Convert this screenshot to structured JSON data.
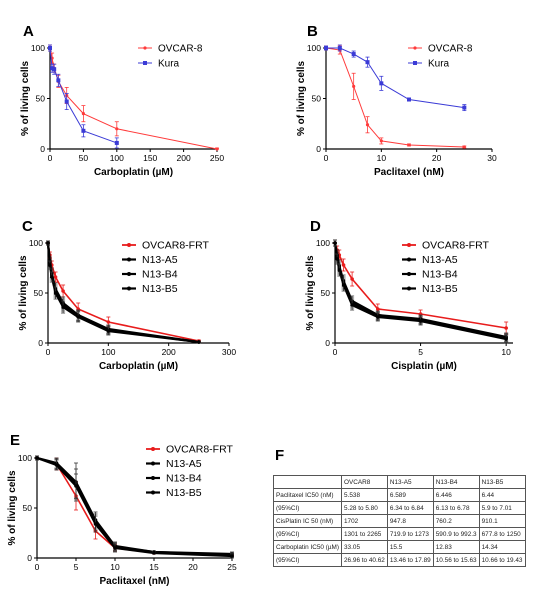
{
  "chart_data": [
    {
      "letter": "A",
      "type": "line",
      "xlabel": "Carboplatin (µM)",
      "ylabel": "% of living cells",
      "xlim": [
        0,
        250
      ],
      "ylim": [
        0,
        100
      ],
      "xticks": [
        0,
        50,
        100,
        150,
        200,
        250
      ],
      "yticks": [
        0,
        50,
        100
      ],
      "xtick_labels": [
        "0",
        "50",
        "100",
        "150",
        "200",
        "250"
      ],
      "ytick_labels": [
        "0",
        "50",
        "100"
      ],
      "legend_style": "small",
      "series": [
        {
          "name": "OVCAR-8",
          "color": "#ff3b3b",
          "width": 1,
          "marker": "dot",
          "x": [
            0,
            3.125,
            6.25,
            12.5,
            25,
            50,
            100,
            250
          ],
          "y": [
            100,
            90,
            80,
            67,
            53,
            35,
            20,
            0
          ],
          "err": [
            3,
            5,
            4,
            6,
            8,
            8,
            7,
            1
          ]
        },
        {
          "name": "Kura",
          "color": "#3b3bd6",
          "width": 1,
          "marker": "square",
          "x": [
            0,
            3.125,
            6.25,
            12.5,
            25,
            50,
            100
          ],
          "y": [
            100,
            80,
            79,
            68,
            47,
            18,
            6
          ],
          "err": [
            3,
            4,
            5,
            6,
            8,
            6,
            5
          ]
        }
      ]
    },
    {
      "letter": "B",
      "type": "line",
      "xlabel": "Paclitaxel (nM)",
      "ylabel": "% of living cells",
      "xlim": [
        0,
        30
      ],
      "ylim": [
        0,
        100
      ],
      "xticks": [
        0,
        10,
        20,
        30
      ],
      "yticks": [
        0,
        50,
        100
      ],
      "xtick_labels": [
        "0",
        "10",
        "20",
        "30"
      ],
      "ytick_labels": [
        "0",
        "50",
        "100"
      ],
      "legend_style": "small",
      "series": [
        {
          "name": "OVCAR-8",
          "color": "#ff3b3b",
          "width": 1,
          "marker": "dot",
          "x": [
            0,
            2.5,
            5,
            7.5,
            10,
            15,
            25
          ],
          "y": [
            100,
            98,
            62,
            24,
            8,
            4,
            2
          ],
          "err": [
            2,
            4,
            13,
            8,
            3,
            1,
            1
          ]
        },
        {
          "name": "Kura",
          "color": "#3b3bd6",
          "width": 1,
          "marker": "square",
          "x": [
            0,
            2.5,
            5,
            7.5,
            10,
            15,
            25
          ],
          "y": [
            100,
            100,
            94,
            86,
            65,
            49,
            41
          ],
          "err": [
            2,
            3,
            3,
            5,
            7,
            1,
            3
          ]
        }
      ]
    },
    {
      "letter": "C",
      "type": "line",
      "xlabel": "Carboplatin (µM)",
      "ylabel": "% of living cells",
      "xlim": [
        0,
        300
      ],
      "ylim": [
        0,
        100
      ],
      "xticks": [
        0,
        100,
        200,
        300
      ],
      "yticks": [
        0,
        50,
        100
      ],
      "xtick_labels": [
        "0",
        "100",
        "200",
        "300"
      ],
      "ytick_labels": [
        "0",
        "50",
        "100"
      ],
      "legend_style": "large",
      "series": [
        {
          "name": "OVCAR8-FRT",
          "color": "#e81c1c",
          "width": 1.6,
          "marker": "dot",
          "x": [
            0,
            3.125,
            6.25,
            12.5,
            25,
            50,
            100,
            250
          ],
          "y": [
            100,
            88,
            78,
            66,
            52,
            34,
            21,
            2
          ],
          "err": [
            2,
            3,
            4,
            5,
            6,
            6,
            5,
            1
          ]
        },
        {
          "name": "N13-A5",
          "color": "#000000",
          "width": 2.2,
          "marker": "dot",
          "x": [
            0,
            3.125,
            6.25,
            12.5,
            25,
            50,
            100,
            250
          ],
          "y": [
            100,
            82,
            70,
            54,
            40,
            28,
            14,
            1
          ],
          "err": [
            2,
            4,
            5,
            6,
            6,
            5,
            4,
            1
          ]
        },
        {
          "name": "N13-B4",
          "color": "#000000",
          "width": 2.2,
          "marker": "dot",
          "x": [
            0,
            3.125,
            6.25,
            12.5,
            25,
            50,
            100,
            250
          ],
          "y": [
            100,
            80,
            68,
            52,
            38,
            27,
            13,
            1
          ],
          "err": [
            2,
            4,
            5,
            6,
            6,
            5,
            4,
            1
          ]
        },
        {
          "name": "N13-B5",
          "color": "#000000",
          "width": 2.2,
          "marker": "dot",
          "x": [
            0,
            3.125,
            6.25,
            12.5,
            25,
            50,
            100,
            250
          ],
          "y": [
            100,
            78,
            66,
            50,
            36,
            26,
            12,
            1
          ],
          "err": [
            2,
            4,
            5,
            6,
            6,
            5,
            4,
            1
          ]
        }
      ]
    },
    {
      "letter": "D",
      "type": "line",
      "xlabel": "Cisplatin (µM)",
      "ylabel": "% of living cells",
      "xlim": [
        0,
        10.4
      ],
      "ylim": [
        0,
        100
      ],
      "xticks": [
        0,
        5,
        10
      ],
      "yticks": [
        0,
        50,
        100
      ],
      "xtick_labels": [
        "0",
        "5",
        "10"
      ],
      "ytick_labels": [
        "0",
        "50",
        "100"
      ],
      "legend_style": "large",
      "series": [
        {
          "name": "OVCAR8-FRT",
          "color": "#e81c1c",
          "width": 1.6,
          "marker": "dot",
          "x": [
            0,
            0.125,
            0.25,
            0.5,
            1,
            2.5,
            5,
            10
          ],
          "y": [
            100,
            93,
            88,
            78,
            64,
            34,
            29,
            15
          ],
          "err": [
            3,
            4,
            5,
            6,
            7,
            5,
            4,
            6
          ]
        },
        {
          "name": "N13-A5",
          "color": "#000000",
          "width": 2.2,
          "marker": "dot",
          "x": [
            0,
            0.125,
            0.25,
            0.5,
            1,
            2.5,
            5,
            10
          ],
          "y": [
            100,
            88,
            77,
            62,
            42,
            28,
            24,
            6
          ],
          "err": [
            3,
            5,
            6,
            6,
            5,
            4,
            4,
            4
          ]
        },
        {
          "name": "N13-B4",
          "color": "#000000",
          "width": 2.2,
          "marker": "dot",
          "x": [
            0,
            0.125,
            0.25,
            0.5,
            1,
            2.5,
            5,
            10
          ],
          "y": [
            100,
            86,
            75,
            60,
            40,
            27,
            23,
            5
          ],
          "err": [
            3,
            5,
            6,
            6,
            5,
            4,
            4,
            4
          ]
        },
        {
          "name": "N13-B5",
          "color": "#000000",
          "width": 2.2,
          "marker": "dot",
          "x": [
            0,
            0.125,
            0.25,
            0.5,
            1,
            2.5,
            5,
            10
          ],
          "y": [
            100,
            84,
            73,
            58,
            38,
            26,
            22,
            4
          ],
          "err": [
            3,
            5,
            6,
            6,
            5,
            4,
            4,
            4
          ]
        }
      ]
    },
    {
      "letter": "E",
      "type": "line",
      "xlabel": "Paclitaxel (nM)",
      "ylabel": "% of living cells",
      "xlim": [
        0,
        25
      ],
      "ylim": [
        0,
        100
      ],
      "xticks": [
        0,
        5,
        10,
        15,
        20,
        25
      ],
      "yticks": [
        0,
        50,
        100
      ],
      "xtick_labels": [
        "0",
        "5",
        "10",
        "15",
        "20",
        "25"
      ],
      "ytick_labels": [
        "0",
        "50",
        "100"
      ],
      "legend_style": "large",
      "series": [
        {
          "name": "OVCAR8-FRT",
          "color": "#e81c1c",
          "width": 1.6,
          "marker": "dot",
          "x": [
            0,
            2.5,
            5,
            7.5,
            10,
            15,
            25
          ],
          "y": [
            100,
            94,
            62,
            27,
            10,
            5,
            3
          ],
          "err": [
            2,
            6,
            14,
            8,
            3,
            1,
            1
          ]
        },
        {
          "name": "N13-A5",
          "color": "#000000",
          "width": 2.2,
          "marker": "dot",
          "x": [
            0,
            2.5,
            5,
            7.5,
            10,
            15,
            25
          ],
          "y": [
            100,
            95,
            76,
            38,
            12,
            6,
            4
          ],
          "err": [
            2,
            5,
            19,
            8,
            4,
            1,
            2
          ]
        },
        {
          "name": "N13-B4",
          "color": "#000000",
          "width": 2.2,
          "marker": "dot",
          "x": [
            0,
            2.5,
            5,
            7.5,
            10,
            15,
            25
          ],
          "y": [
            100,
            94,
            74,
            36,
            11,
            6,
            3
          ],
          "err": [
            2,
            5,
            15,
            8,
            4,
            1,
            2
          ]
        },
        {
          "name": "N13-B5",
          "color": "#000000",
          "width": 2.2,
          "marker": "dot",
          "x": [
            0,
            2.5,
            5,
            7.5,
            10,
            15,
            25
          ],
          "y": [
            100,
            93,
            72,
            34,
            10,
            5,
            2
          ],
          "err": [
            2,
            5,
            12,
            8,
            4,
            1,
            2
          ]
        }
      ]
    }
  ],
  "table": {
    "letter": "F",
    "headers": [
      "",
      "OVCAR8",
      "N13-A5",
      "N13-B4",
      "N13-B5"
    ],
    "rows": [
      [
        "Paclitaxel IC50 (nM)",
        "5.538",
        "6.589",
        "6.446",
        "6.44"
      ],
      [
        "(95%CI)",
        "5.28 to 5.80",
        "6.34 to 6.84",
        "6.13 to 6.78",
        "5.9 to 7.01"
      ],
      [
        "CisPlatin IC 50 (nM)",
        "1702",
        "947.8",
        "760.2",
        "910.1"
      ],
      [
        "(95%CI)",
        "1301 to 2265",
        "719.9 to 1273",
        "590.9 to 992.3",
        "677.8 to 1250"
      ],
      [
        "Carboplatin IC50 (µM)",
        "33.05",
        "15.5",
        "12.83",
        "14.34"
      ],
      [
        "(95%CI)",
        "26.96 to 40.62",
        "13.46 to 17.89",
        "10.56 to 15.63",
        "10.66 to 19.43"
      ]
    ]
  }
}
